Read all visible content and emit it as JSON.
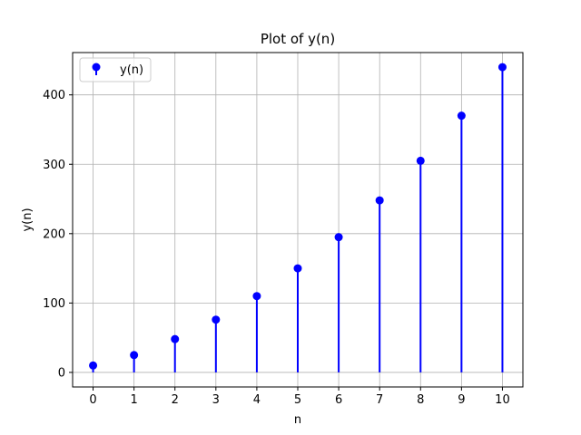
{
  "chart_data": {
    "type": "stem",
    "title": "Plot of y(n)",
    "xlabel": "n",
    "ylabel": "y(n)",
    "x": [
      0,
      1,
      2,
      3,
      4,
      5,
      6,
      7,
      8,
      9,
      10
    ],
    "xticks": [
      "0",
      "1",
      "2",
      "3",
      "4",
      "5",
      "6",
      "7",
      "8",
      "9",
      "10"
    ],
    "yticks": [
      "0",
      "100",
      "200",
      "300",
      "400"
    ],
    "xlim": [
      -0.5,
      10.5
    ],
    "ylim": [
      -21,
      461
    ],
    "grid": true,
    "legend_position": "top-left",
    "series": [
      {
        "name": "y(n)",
        "color": "#0000ff",
        "values": [
          10,
          25,
          48,
          76,
          110,
          150,
          195,
          248,
          305,
          370,
          440
        ]
      }
    ]
  }
}
